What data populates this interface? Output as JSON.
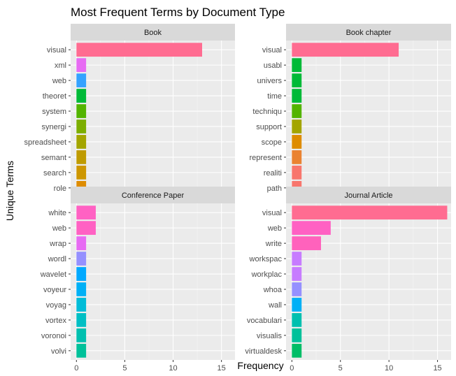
{
  "chart_data": {
    "type": "bar",
    "orientation": "horizontal",
    "title": "Most Frequent Terms by Document Type",
    "xlabel": "Frequency",
    "ylabel": "Unique Terms",
    "xlim": [
      0,
      15.8
    ],
    "xticks": [
      0,
      5,
      10,
      15
    ],
    "grid": true,
    "legend": "none",
    "facets": [
      {
        "name": "Book",
        "terms": [
          "visual",
          "xml",
          "web",
          "theoret",
          "system",
          "synergi",
          "spreadsheet",
          "semant",
          "search",
          "role"
        ],
        "values": [
          13,
          1,
          1,
          1,
          1,
          1,
          1,
          1,
          1,
          1
        ],
        "colors": [
          "#FF6C91",
          "#E76BF3",
          "#35A2FF",
          "#00BA38",
          "#53B400",
          "#7CAE00",
          "#A3A500",
          "#BF9B00",
          "#CD9600",
          "#DE8C00"
        ]
      },
      {
        "name": "Book chapter",
        "terms": [
          "visual",
          "usabl",
          "univers",
          "time",
          "techniqu",
          "support",
          "scope",
          "represent",
          "realiti",
          "path"
        ],
        "values": [
          11,
          1,
          1,
          1,
          1,
          1,
          1,
          1,
          1,
          1
        ],
        "colors": [
          "#FF6C91",
          "#00BA38",
          "#00BA38",
          "#00BA38",
          "#53B400",
          "#A3A500",
          "#DE8C00",
          "#EA8331",
          "#F8766D",
          "#F8766D"
        ]
      },
      {
        "name": "Conference Paper",
        "terms": [
          "white",
          "web",
          "wrap",
          "wordl",
          "wavelet",
          "voyeur",
          "voyag",
          "vortex",
          "voronoi",
          "volvi"
        ],
        "values": [
          2,
          2,
          1,
          1,
          1,
          1,
          1,
          1,
          1,
          1
        ],
        "colors": [
          "#FF61C3",
          "#FF61C3",
          "#E76BF3",
          "#9590FF",
          "#00A9FF",
          "#00B0F6",
          "#00BCD8",
          "#00BFC4",
          "#00C0AF",
          "#00C19A"
        ]
      },
      {
        "name": "Journal Article",
        "terms": [
          "visual",
          "web",
          "write",
          "workspac",
          "workplac",
          "whoa",
          "wall",
          "vocabulari",
          "visualis",
          "virtualdesk"
        ],
        "values": [
          16,
          4,
          3,
          1,
          1,
          1,
          1,
          1,
          1,
          1
        ],
        "colors": [
          "#FF6C91",
          "#FF61C3",
          "#FF62BC",
          "#C77CFF",
          "#C77CFF",
          "#9590FF",
          "#00B0F6",
          "#00C0AF",
          "#00C19A",
          "#00BE67"
        ]
      }
    ]
  }
}
